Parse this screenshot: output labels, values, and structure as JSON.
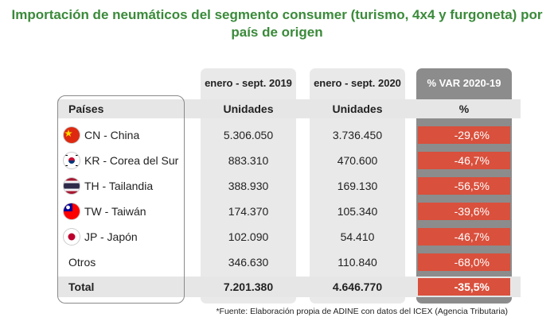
{
  "title": "Importación de neumáticos del segmento consumer (turismo, 4x4 y furgoneta) por país de origen",
  "chart_data": {
    "type": "table",
    "title": "Importación de neumáticos del segmento consumer (turismo, 4x4 y furgoneta) por país de origen",
    "column_groups": [
      "enero - sept. 2019",
      "enero - sept. 2020",
      "% VAR 2020-19"
    ],
    "columns": [
      "Países",
      "Unidades",
      "Unidades",
      "%"
    ],
    "rows": [
      {
        "country": "CN - China",
        "flag": "china-flag-icon",
        "v2019": "5.306.050",
        "v2020": "3.736.450",
        "var": "-29,6%"
      },
      {
        "country": "KR - Corea del Sur",
        "flag": "south-korea-flag-icon",
        "v2019": "883.310",
        "v2020": "470.600",
        "var": "-46,7%"
      },
      {
        "country": "TH - Tailandia",
        "flag": "thailand-flag-icon",
        "v2019": "388.930",
        "v2020": "169.130",
        "var": "-56,5%"
      },
      {
        "country": "TW - Taiwán",
        "flag": "taiwan-flag-icon",
        "v2019": "174.370",
        "v2020": "105.340",
        "var": "-39,6%"
      },
      {
        "country": "JP - Japón",
        "flag": "japan-flag-icon",
        "v2019": "102.090",
        "v2020": "54.410",
        "var": "-46,7%"
      },
      {
        "country": "Otros",
        "flag": "",
        "v2019": "346.630",
        "v2020": "110.840",
        "var": "-68,0%"
      }
    ],
    "total": {
      "label": "Total",
      "v2019": "7.201.380",
      "v2020": "4.646.770",
      "var": "-35,5%"
    }
  },
  "footnote": "*Fuente: Elaboración propia de ADINE con datos del ICEX (Agencia Tributaria)",
  "colors": {
    "title": "#3a8a3a",
    "negative": "#d9503c",
    "var_header": "#8c8c8c"
  }
}
